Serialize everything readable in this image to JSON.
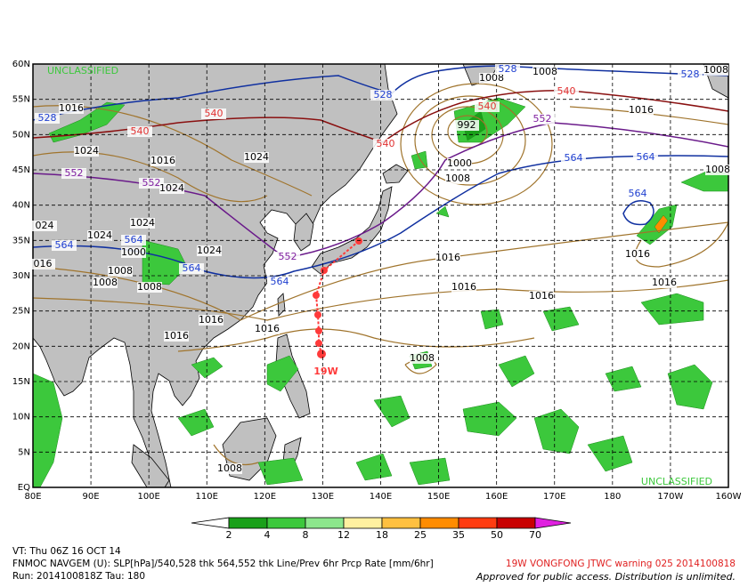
{
  "map": {
    "lat_labels": [
      "60N",
      "55N",
      "50N",
      "45N",
      "40N",
      "35N",
      "30N",
      "25N",
      "20N",
      "15N",
      "10N",
      "5N",
      "EQ"
    ],
    "lon_labels": [
      "80E",
      "90E",
      "100E",
      "110E",
      "120E",
      "130E",
      "140E",
      "150E",
      "160E",
      "170E",
      "180",
      "170W",
      "160W"
    ],
    "classification": [
      "UNCLASSIFIED",
      "UNCLASSIFIED"
    ],
    "storm_label": "19W",
    "contour_labels": [
      {
        "text": "1016",
        "color": "#000000"
      },
      {
        "text": "528",
        "color": "#2040d0"
      },
      {
        "text": "540",
        "color": "#e03030"
      },
      {
        "text": "540",
        "color": "#e03030"
      },
      {
        "text": "1024",
        "color": "#000000"
      },
      {
        "text": "1016",
        "color": "#000000"
      },
      {
        "text": "1024",
        "color": "#000000"
      },
      {
        "text": "552",
        "color": "#8020a0"
      },
      {
        "text": "552",
        "color": "#8020a0"
      },
      {
        "text": "1024",
        "color": "#000000"
      },
      {
        "text": "1024",
        "color": "#000000"
      },
      {
        "text": "024",
        "color": "#000000"
      },
      {
        "text": "1024",
        "color": "#000000"
      },
      {
        "text": "564",
        "color": "#2040d0"
      },
      {
        "text": "564",
        "color": "#2040d0"
      },
      {
        "text": "1000",
        "color": "#000000"
      },
      {
        "text": "1024",
        "color": "#000000"
      },
      {
        "text": "016",
        "color": "#000000"
      },
      {
        "text": "1008",
        "color": "#000000"
      },
      {
        "text": "564",
        "color": "#2040d0"
      },
      {
        "text": "1008",
        "color": "#000000"
      },
      {
        "text": "1008",
        "color": "#000000"
      },
      {
        "text": "552",
        "color": "#8020a0"
      },
      {
        "text": "564",
        "color": "#2040d0"
      },
      {
        "text": "1016",
        "color": "#000000"
      },
      {
        "text": "1016",
        "color": "#000000"
      },
      {
        "text": "1016",
        "color": "#000000"
      },
      {
        "text": "1008",
        "color": "#000000"
      },
      {
        "text": "528",
        "color": "#2040d0"
      },
      {
        "text": "540",
        "color": "#e03030"
      },
      {
        "text": "1008",
        "color": "#000000"
      },
      {
        "text": "1008",
        "color": "#000000"
      },
      {
        "text": "528",
        "color": "#2040d0"
      },
      {
        "text": "540",
        "color": "#e03030"
      },
      {
        "text": "540",
        "color": "#e03030"
      },
      {
        "text": "992",
        "color": "#000000"
      },
      {
        "text": "552",
        "color": "#8020a0"
      },
      {
        "text": "1016",
        "color": "#000000"
      },
      {
        "text": "1000",
        "color": "#000000"
      },
      {
        "text": "1008",
        "color": "#000000"
      },
      {
        "text": "564",
        "color": "#2040d0"
      },
      {
        "text": "564",
        "color": "#2040d0"
      },
      {
        "text": "564",
        "color": "#2040d0"
      },
      {
        "text": "528",
        "color": "#2040d0"
      },
      {
        "text": "1008",
        "color": "#000000"
      },
      {
        "text": "1008",
        "color": "#000000"
      },
      {
        "text": "1016",
        "color": "#000000"
      },
      {
        "text": "1016",
        "color": "#000000"
      },
      {
        "text": "1016",
        "color": "#000000"
      },
      {
        "text": "1016",
        "color": "#000000"
      },
      {
        "text": "1016",
        "color": "#000000"
      },
      {
        "text": "1008",
        "color": "#000000"
      }
    ]
  },
  "colorbar": {
    "ticks": [
      "2",
      "4",
      "8",
      "12",
      "18",
      "25",
      "35",
      "50",
      "70"
    ],
    "colors": [
      "#19a019",
      "#3cc83c",
      "#8ce68c",
      "#fff0a0",
      "#ffc040",
      "#ff8c00",
      "#ff3c10",
      "#c80000"
    ]
  },
  "footer": {
    "valid_time": "VT: Thu 06Z 16 OCT 14",
    "product": "FNMOC NAVGEM (U): SLP[hPa]/540,528 thk 564,552 thk Line/Prev 6hr Prcp Rate [mm/6hr]",
    "run": "Run: 2014100818Z Tau: 180",
    "warning": "19W VONGFONG JTWC warning 025 2014100818",
    "release": "Approved for public access. Distribution is unlimited."
  }
}
